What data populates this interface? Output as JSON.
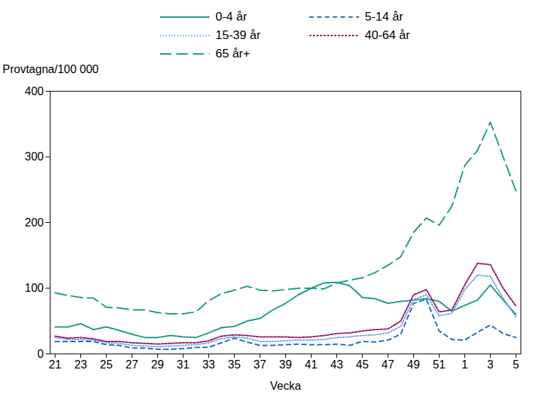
{
  "chart_data": {
    "type": "line",
    "x_label": "Vecka",
    "y_label": "Provtagna/100 000",
    "categories": [
      "21",
      null,
      "23",
      null,
      "25",
      null,
      "27",
      null,
      "29",
      null,
      "31",
      null,
      "33",
      null,
      "35",
      null,
      "37",
      null,
      "39",
      null,
      "41",
      null,
      "43",
      null,
      "45",
      null,
      "47",
      null,
      "49",
      null,
      "51",
      null,
      "1",
      null,
      "3",
      null,
      "5"
    ],
    "ylim": [
      0,
      400
    ],
    "yticks": [
      0,
      100,
      200,
      300,
      400
    ],
    "grid": false,
    "legend": "top",
    "series": [
      {
        "name": "0-4 år",
        "color": "#1f9a87",
        "line_style": "solid",
        "values": [
          41,
          41,
          46,
          37,
          41,
          36,
          30,
          25,
          25,
          28,
          26,
          25,
          32,
          40,
          42,
          50,
          54,
          67,
          77,
          90,
          100,
          108,
          109,
          104,
          86,
          84,
          77,
          80,
          82,
          84,
          80,
          65,
          74,
          82,
          105,
          82,
          60
        ]
      },
      {
        "name": "5-14 år",
        "color": "#1f6fb5",
        "line_style": "dashed",
        "values": [
          19,
          19,
          19,
          19,
          14,
          13,
          9,
          9,
          7,
          7,
          8,
          10,
          10,
          17,
          24,
          18,
          13,
          13,
          14,
          15,
          14,
          14,
          15,
          13,
          19,
          18,
          21,
          30,
          77,
          83,
          35,
          22,
          21,
          33,
          44,
          31,
          25
        ]
      },
      {
        "name": "15-39 år",
        "color": "#6aa8e0",
        "line_style": "dotted",
        "values": [
          25,
          22,
          22,
          21,
          17,
          16,
          13,
          12,
          11,
          12,
          13,
          14,
          17,
          23,
          26,
          24,
          19,
          19,
          20,
          21,
          21,
          22,
          25,
          26,
          28,
          29,
          32,
          42,
          83,
          90,
          58,
          62,
          98,
          120,
          118,
          85,
          56
        ]
      },
      {
        "name": "40-64 år",
        "color": "#9b1b6e",
        "line_style": "short_dash",
        "values": [
          27,
          24,
          25,
          23,
          19,
          19,
          17,
          16,
          15,
          16,
          17,
          17,
          20,
          27,
          29,
          28,
          26,
          26,
          26,
          25,
          26,
          28,
          31,
          32,
          35,
          37,
          38,
          50,
          90,
          98,
          64,
          67,
          105,
          138,
          136,
          100,
          73
        ]
      },
      {
        "name": "65 år+",
        "color": "#1f9a87",
        "line_style": "long_dash",
        "values": [
          93,
          89,
          86,
          85,
          71,
          70,
          67,
          67,
          63,
          61,
          61,
          64,
          81,
          92,
          97,
          103,
          97,
          96,
          98,
          100,
          100,
          99,
          108,
          112,
          116,
          124,
          135,
          148,
          185,
          207,
          196,
          225,
          287,
          310,
          353,
          300,
          248
        ]
      }
    ]
  }
}
